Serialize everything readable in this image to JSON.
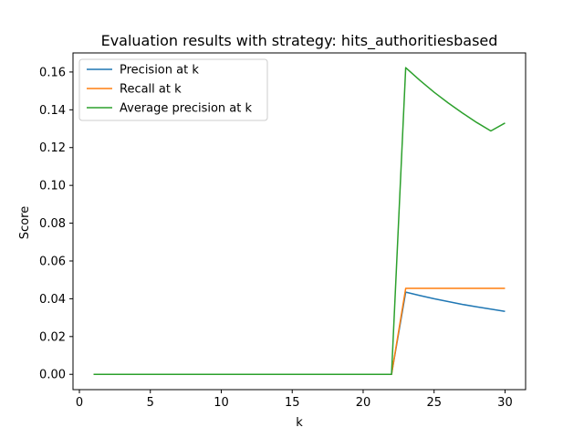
{
  "chart_data": {
    "type": "line",
    "title": "Evaluation results with strategy: hits_authoritiesbased",
    "xlabel": "k",
    "ylabel": "Score",
    "xlim": [
      -0.45,
      31.45
    ],
    "ylim": [
      -0.0081,
      0.1701
    ],
    "xticks": [
      0,
      5,
      10,
      15,
      20,
      25,
      30
    ],
    "xtick_labels": [
      "0",
      "5",
      "10",
      "15",
      "20",
      "25",
      "30"
    ],
    "yticks": [
      0.0,
      0.02,
      0.04,
      0.06,
      0.08,
      0.1,
      0.12,
      0.14,
      0.16
    ],
    "ytick_labels": [
      "0.00",
      "0.02",
      "0.04",
      "0.06",
      "0.08",
      "0.10",
      "0.12",
      "0.14",
      "0.16"
    ],
    "grid": false,
    "legend_position": "top-left",
    "x": [
      1,
      2,
      3,
      4,
      5,
      6,
      7,
      8,
      9,
      10,
      11,
      12,
      13,
      14,
      15,
      16,
      17,
      18,
      19,
      20,
      21,
      22,
      23,
      24,
      25,
      26,
      27,
      28,
      29,
      30
    ],
    "series": [
      {
        "name": "Precision at k",
        "color": "#1f77b4",
        "values": [
          0,
          0,
          0,
          0,
          0,
          0,
          0,
          0,
          0,
          0,
          0,
          0,
          0,
          0,
          0,
          0,
          0,
          0,
          0,
          0,
          0,
          0,
          0.0435,
          0.0417,
          0.04,
          0.0385,
          0.037,
          0.0357,
          0.0345,
          0.0333
        ]
      },
      {
        "name": "Recall at k",
        "color": "#ff7f0e",
        "values": [
          0,
          0,
          0,
          0,
          0,
          0,
          0,
          0,
          0,
          0,
          0,
          0,
          0,
          0,
          0,
          0,
          0,
          0,
          0,
          0,
          0,
          0,
          0.0455,
          0.0455,
          0.0455,
          0.0455,
          0.0455,
          0.0455,
          0.0455,
          0.0455
        ]
      },
      {
        "name": "Average precision at k",
        "color": "#2ca02c",
        "values": [
          0,
          0,
          0,
          0,
          0,
          0,
          0,
          0,
          0,
          0,
          0,
          0,
          0,
          0,
          0,
          0,
          0,
          0,
          0,
          0,
          0,
          0,
          0.1623,
          0.1556,
          0.1493,
          0.1436,
          0.1383,
          0.1333,
          0.1288,
          0.133
        ]
      }
    ]
  }
}
